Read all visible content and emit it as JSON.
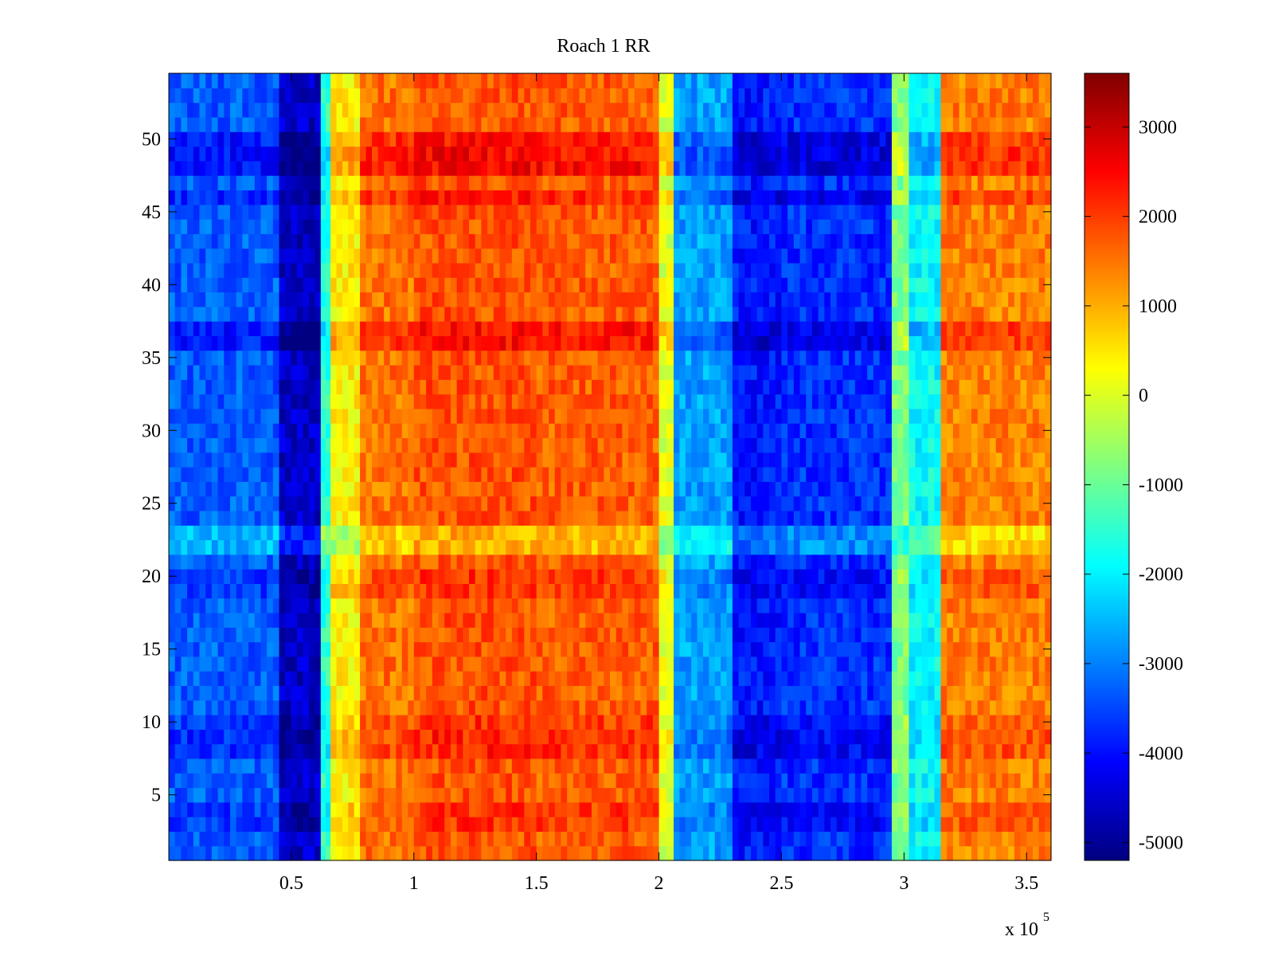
{
  "chart_data": {
    "type": "heatmap",
    "title": "Roach 1 RR",
    "xlabel": "",
    "ylabel": "",
    "x_multiplier_label": "x 10",
    "x_multiplier_exponent": "5",
    "xlim": [
      0,
      3.6
    ],
    "x_range_units": [
      0,
      360000
    ],
    "x_ticks": [
      0.5,
      1,
      1.5,
      2,
      2.5,
      3,
      3.5
    ],
    "x_tick_labels": [
      "0.5",
      "1",
      "1.5",
      "2",
      "2.5",
      "3",
      "3.5"
    ],
    "ylim": [
      0.5,
      54.5
    ],
    "y_ticks": [
      5,
      10,
      15,
      20,
      25,
      30,
      35,
      40,
      45,
      50
    ],
    "y_tick_labels": [
      "5",
      "10",
      "15",
      "20",
      "25",
      "30",
      "35",
      "40",
      "45",
      "50"
    ],
    "rows": 54,
    "colormap": "jet",
    "color_range": [
      -5200,
      3600
    ],
    "colorbar_ticks": [
      3000,
      2000,
      1000,
      0,
      -1000,
      -2000,
      -3000,
      -4000,
      -5000
    ],
    "colorbar_tick_labels": [
      "3000",
      "2000",
      "1000",
      "0",
      "-1000",
      "-2000",
      "-3000",
      "-4000",
      "-5000"
    ],
    "grid": false,
    "segments": [
      {
        "x_start": 0.0,
        "x_end": 0.45,
        "value": -3300
      },
      {
        "x_start": 0.45,
        "x_end": 0.62,
        "value": -4600
      },
      {
        "x_start": 0.62,
        "x_end": 0.66,
        "value": -1500
      },
      {
        "x_start": 0.66,
        "x_end": 0.78,
        "value": 400
      },
      {
        "x_start": 0.78,
        "x_end": 1.0,
        "value": 1500
      },
      {
        "x_start": 1.0,
        "x_end": 1.5,
        "value": 1800
      },
      {
        "x_start": 1.5,
        "x_end": 2.0,
        "value": 1700
      },
      {
        "x_start": 2.0,
        "x_end": 2.06,
        "value": 0
      },
      {
        "x_start": 2.06,
        "x_end": 2.3,
        "value": -2700
      },
      {
        "x_start": 2.3,
        "x_end": 2.5,
        "value": -3900
      },
      {
        "x_start": 2.5,
        "x_end": 2.95,
        "value": -3700
      },
      {
        "x_start": 2.95,
        "x_end": 3.02,
        "value": -800
      },
      {
        "x_start": 3.02,
        "x_end": 3.15,
        "value": -1900
      },
      {
        "x_start": 3.15,
        "x_end": 3.6,
        "value": 1400
      }
    ],
    "highlighted_rows": [
      {
        "row": 3,
        "value_shift": 300
      },
      {
        "row": 4,
        "value_shift": 300
      },
      {
        "row": 8,
        "value_shift": 400
      },
      {
        "row": 9,
        "value_shift": 400
      },
      {
        "row": 10,
        "value_shift": 300
      },
      {
        "row": 19,
        "value_shift": 300
      },
      {
        "row": 20,
        "value_shift": 300
      },
      {
        "row": 22,
        "value_shift": -800
      },
      {
        "row": 23,
        "value_shift": -800
      },
      {
        "row": 36,
        "value_shift": 600
      },
      {
        "row": 37,
        "value_shift": 600
      },
      {
        "row": 46,
        "value_shift": 500
      },
      {
        "row": 48,
        "value_shift": 700
      },
      {
        "row": 49,
        "value_shift": 700
      },
      {
        "row": 50,
        "value_shift": 600
      }
    ]
  }
}
